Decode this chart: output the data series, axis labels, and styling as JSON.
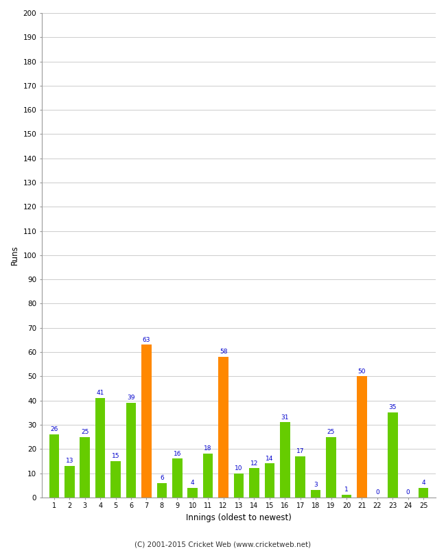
{
  "innings": [
    1,
    2,
    3,
    4,
    5,
    6,
    7,
    8,
    9,
    10,
    11,
    12,
    13,
    14,
    15,
    16,
    17,
    18,
    19,
    20,
    21,
    22,
    23,
    24,
    25
  ],
  "runs": [
    26,
    13,
    25,
    41,
    15,
    39,
    63,
    6,
    16,
    4,
    18,
    58,
    10,
    12,
    14,
    31,
    17,
    3,
    25,
    1,
    50,
    0,
    35,
    0,
    4
  ],
  "colors": [
    "#66cc00",
    "#66cc00",
    "#66cc00",
    "#66cc00",
    "#66cc00",
    "#66cc00",
    "#ff8800",
    "#66cc00",
    "#66cc00",
    "#66cc00",
    "#66cc00",
    "#ff8800",
    "#66cc00",
    "#66cc00",
    "#66cc00",
    "#66cc00",
    "#66cc00",
    "#66cc00",
    "#66cc00",
    "#66cc00",
    "#ff8800",
    "#66cc00",
    "#66cc00",
    "#66cc00",
    "#66cc00"
  ],
  "xlabel": "Innings (oldest to newest)",
  "ylabel": "Runs",
  "ylim": [
    0,
    200
  ],
  "yticks": [
    0,
    10,
    20,
    30,
    40,
    50,
    60,
    70,
    80,
    90,
    100,
    110,
    120,
    130,
    140,
    150,
    160,
    170,
    180,
    190,
    200
  ],
  "label_color": "#0000cc",
  "footer": "(C) 2001-2015 Cricket Web (www.cricketweb.net)",
  "bg_color": "#ffffff",
  "plot_bg_color": "#ffffff",
  "grid_color": "#cccccc",
  "bar_width": 0.65
}
